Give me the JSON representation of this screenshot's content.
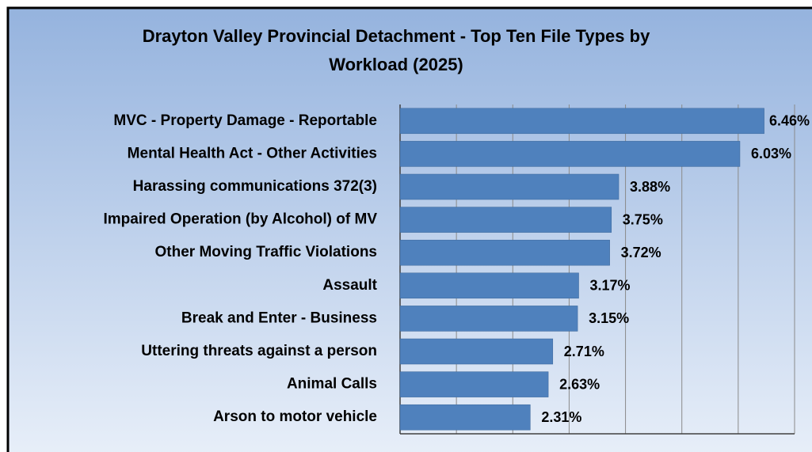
{
  "chart_data": {
    "type": "bar",
    "orientation": "horizontal",
    "title": [
      "Drayton Valley Provincial Detachment - Top Ten File Types by",
      "Workload (2025)"
    ],
    "categories": [
      "MVC - Property Damage - Reportable",
      "Mental Health Act - Other Activities",
      "Harassing communications 372(3)",
      "Impaired Operation (by Alcohol) of MV",
      "Other Moving Traffic Violations",
      "Assault",
      "Break and Enter - Business",
      "Uttering threats against a person",
      "Animal Calls",
      "Arson to motor vehicle"
    ],
    "values": [
      6.46,
      6.03,
      3.88,
      3.75,
      3.72,
      3.17,
      3.15,
      2.71,
      2.63,
      2.31
    ],
    "value_labels": [
      "6.46%",
      "6.03%",
      "3.88%",
      "3.75%",
      "3.72%",
      "3.17%",
      "3.15%",
      "2.71%",
      "2.63%",
      "2.31%"
    ],
    "color": "#4f81bd",
    "xlim": [
      0,
      7
    ],
    "xticks": [
      0,
      1,
      2,
      3,
      4,
      5,
      6,
      7
    ],
    "grid": true
  }
}
